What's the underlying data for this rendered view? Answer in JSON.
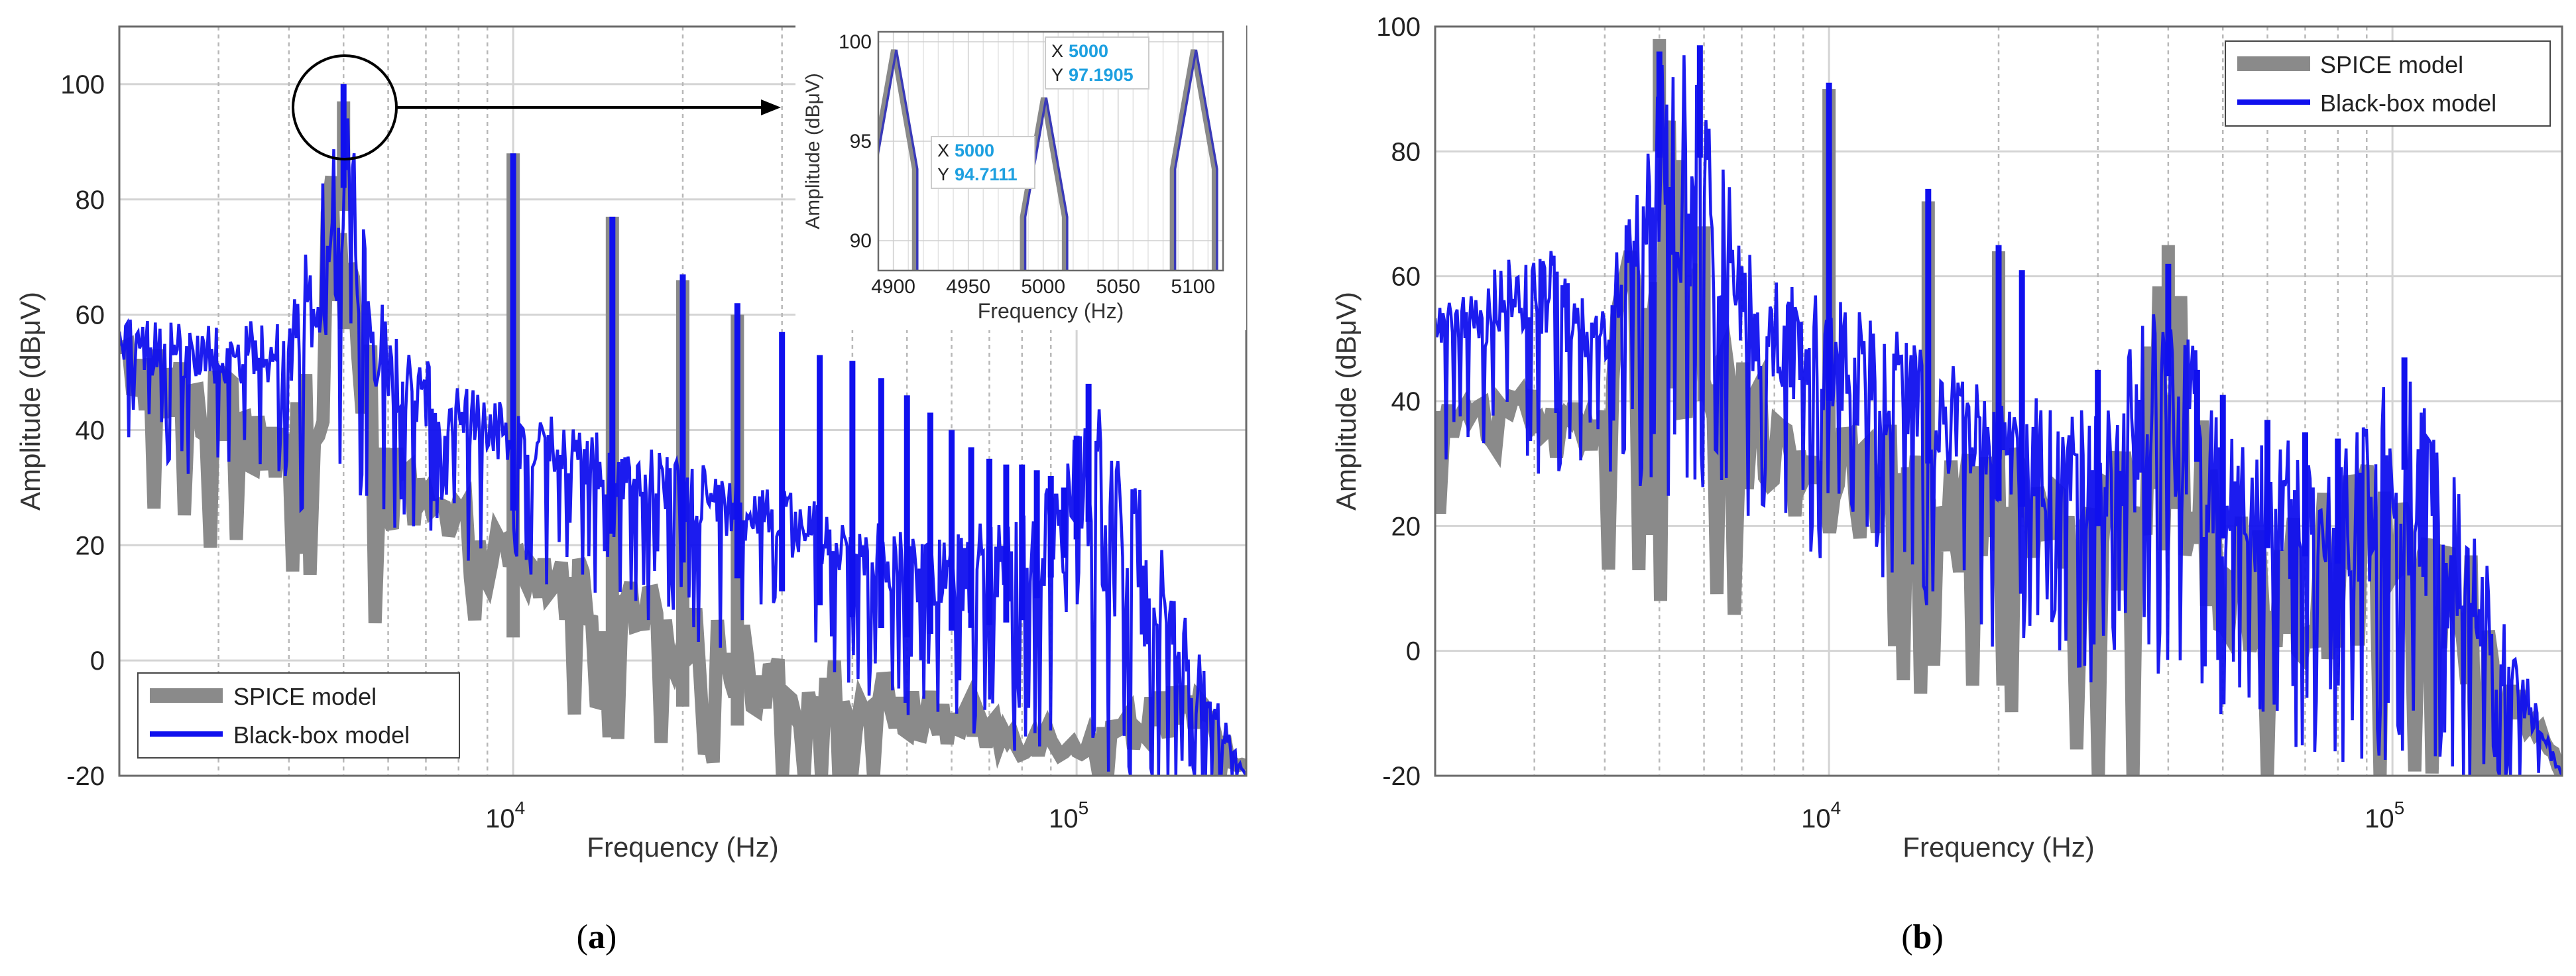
{
  "colors": {
    "spice": "#8a8a8a",
    "blackbox": "#1010ee",
    "grid_major": "#d4d4d4",
    "grid_minor": "#b8b8b8",
    "datatip_text": "#1ea0e0"
  },
  "chart_data": [
    {
      "type": "line",
      "panel": "(a)",
      "panel_letter": "a",
      "xscale": "log",
      "xlim": [
        2000,
        200000
      ],
      "ylim": [
        -20,
        110
      ],
      "yticks": [
        -20,
        0,
        20,
        40,
        60,
        80,
        100
      ],
      "ytick_labels": [
        "-20",
        "0",
        "20",
        "40",
        "60",
        "80",
        "100"
      ],
      "xtick_labels": [
        {
          "base": "10",
          "exp": "4",
          "value": 10000
        },
        {
          "base": "10",
          "exp": "5",
          "value": 100000
        }
      ],
      "xlabel": "Frequency (Hz)",
      "ylabel": "Amplitude (dBμV)",
      "legend": {
        "location": "lower-left",
        "entries": [
          "SPICE model",
          "Black-box model"
        ]
      },
      "series": [
        {
          "name": "SPICE model",
          "style": "thick gray",
          "envelope_points": [
            [
              2000,
              58
            ],
            [
              3000,
              50
            ],
            [
              4000,
              44
            ],
            [
              5000,
              96
            ],
            [
              6000,
              38
            ],
            [
              8000,
              28
            ],
            [
              10000,
              22
            ],
            [
              15000,
              16
            ],
            [
              20000,
              10
            ],
            [
              30000,
              4
            ],
            [
              50000,
              -4
            ],
            [
              80000,
              -10
            ],
            [
              110000,
              -12
            ],
            [
              150000,
              0
            ],
            [
              200000,
              -18
            ]
          ],
          "lower_points": [
            [
              2000,
              38
            ],
            [
              4000,
              22
            ],
            [
              6000,
              14
            ],
            [
              10000,
              4
            ],
            [
              20000,
              -10
            ],
            [
              30000,
              -20
            ],
            [
              200000,
              -20
            ]
          ],
          "harmonics": [
            {
              "f": 5000,
              "a": 97
            },
            {
              "f": 10000,
              "a": 88
            },
            {
              "f": 15000,
              "a": 77
            },
            {
              "f": 20000,
              "a": 66
            },
            {
              "f": 25000,
              "a": 60
            }
          ]
        },
        {
          "name": "Black-box model",
          "style": "blue",
          "envelope_points": [
            [
              2000,
              60
            ],
            [
              3000,
              58
            ],
            [
              4000,
              60
            ],
            [
              5000,
              100
            ],
            [
              6000,
              58
            ],
            [
              8000,
              48
            ],
            [
              10000,
              44
            ],
            [
              15000,
              40
            ],
            [
              20000,
              35
            ],
            [
              30000,
              30
            ],
            [
              50000,
              22
            ],
            [
              80000,
              25
            ],
            [
              110000,
              45
            ],
            [
              130000,
              30
            ],
            [
              200000,
              -20
            ]
          ],
          "lower_points": [
            [
              2000,
              44
            ],
            [
              4000,
              40
            ],
            [
              6000,
              34
            ],
            [
              10000,
              28
            ],
            [
              20000,
              18
            ],
            [
              40000,
              8
            ],
            [
              70000,
              -2
            ],
            [
              100000,
              -8
            ],
            [
              200000,
              -20
            ]
          ],
          "harmonics": [
            {
              "f": 5000,
              "a": 100
            },
            {
              "f": 10000,
              "a": 88
            },
            {
              "f": 15000,
              "a": 77
            },
            {
              "f": 20000,
              "a": 67
            },
            {
              "f": 25000,
              "a": 62
            },
            {
              "f": 30000,
              "a": 57
            },
            {
              "f": 35000,
              "a": 53
            },
            {
              "f": 40000,
              "a": 52
            },
            {
              "f": 45000,
              "a": 49
            },
            {
              "f": 50000,
              "a": 46
            },
            {
              "f": 55000,
              "a": 43
            },
            {
              "f": 60000,
              "a": 40
            },
            {
              "f": 65000,
              "a": 37
            },
            {
              "f": 70000,
              "a": 35
            },
            {
              "f": 75000,
              "a": 34
            },
            {
              "f": 80000,
              "a": 34
            },
            {
              "f": 85000,
              "a": 33
            },
            {
              "f": 90000,
              "a": 32
            },
            {
              "f": 95000,
              "a": 30
            },
            {
              "f": 100000,
              "a": 39
            },
            {
              "f": 105000,
              "a": 48
            }
          ]
        }
      ],
      "inset": {
        "xlim": [
          4890,
          5120
        ],
        "ylim": [
          88.5,
          100.5
        ],
        "xticks": [
          4900,
          4950,
          5000,
          5050,
          5100
        ],
        "xtick_labels": [
          "4900",
          "4950",
          "5000",
          "5050",
          "5100"
        ],
        "yticks": [
          90,
          95,
          100
        ],
        "ytick_labels": [
          "90",
          "95",
          "100"
        ],
        "xlabel": "Frequency (Hz)",
        "ylabel": "Amplitude (dBμV)",
        "peaks": [
          {
            "f": 4900,
            "a": 99.6
          },
          {
            "f": 5000,
            "a": 97.19
          },
          {
            "f": 5100,
            "a": 99.6
          }
        ],
        "datatips": [
          {
            "x_key": "X",
            "x_val": "5000",
            "y_key": "Y",
            "y_val": "97.1905"
          },
          {
            "x_key": "X",
            "x_val": "5000",
            "y_key": "Y",
            "y_val": "94.7111"
          }
        ]
      }
    },
    {
      "type": "line",
      "panel": "(b)",
      "panel_letter": "b",
      "xscale": "log",
      "xlim": [
        2000,
        200000
      ],
      "ylim": [
        -20,
        100
      ],
      "yticks": [
        -20,
        0,
        20,
        40,
        60,
        80,
        100
      ],
      "ytick_labels": [
        "-20",
        "0",
        "20",
        "40",
        "60",
        "80",
        "100"
      ],
      "xtick_labels": [
        {
          "base": "10",
          "exp": "4",
          "value": 10000
        },
        {
          "base": "10",
          "exp": "5",
          "value": 100000
        }
      ],
      "xlabel": "Frequency (Hz)",
      "ylabel": "Amplitude (dBμV)",
      "legend": {
        "location": "top-right",
        "entries": [
          "SPICE model",
          "Black-box model"
        ]
      },
      "series": [
        {
          "name": "SPICE model",
          "style": "thick gray",
          "envelope_points": [
            [
              2000,
              40
            ],
            [
              3000,
              42
            ],
            [
              4000,
              44
            ],
            [
              5000,
              98
            ],
            [
              6000,
              58
            ],
            [
              8000,
              42
            ],
            [
              10000,
              38
            ],
            [
              20000,
              34
            ],
            [
              30000,
              30
            ],
            [
              40000,
              65
            ],
            [
              50000,
              30
            ],
            [
              80000,
              26
            ],
            [
              110000,
              45
            ],
            [
              150000,
              5
            ],
            [
              200000,
              -18
            ]
          ],
          "lower_points": [
            [
              2000,
              30
            ],
            [
              3000,
              26
            ],
            [
              5000,
              18
            ],
            [
              10000,
              8
            ],
            [
              20000,
              -5
            ],
            [
              30000,
              -15
            ],
            [
              200000,
              -20
            ]
          ],
          "harmonics": [
            {
              "f": 5000,
              "a": 98
            },
            {
              "f": 6000,
              "a": 68
            },
            {
              "f": 10000,
              "a": 90
            },
            {
              "f": 15000,
              "a": 72
            },
            {
              "f": 20000,
              "a": 64
            },
            {
              "f": 40000,
              "a": 65
            }
          ]
        },
        {
          "name": "Black-box model",
          "style": "blue",
          "envelope_points": [
            [
              2000,
              55
            ],
            [
              2500,
              60
            ],
            [
              3000,
              70
            ],
            [
              3500,
              58
            ],
            [
              4000,
              55
            ],
            [
              5000,
              97
            ],
            [
              6000,
              97
            ],
            [
              7000,
              65
            ],
            [
              10000,
              58
            ],
            [
              15000,
              48
            ],
            [
              20000,
              42
            ],
            [
              30000,
              38
            ],
            [
              40000,
              62
            ],
            [
              50000,
              36
            ],
            [
              80000,
              32
            ],
            [
              105000,
              47
            ],
            [
              130000,
              28
            ],
            [
              200000,
              -20
            ]
          ],
          "lower_points": [
            [
              2000,
              44
            ],
            [
              4000,
              40
            ],
            [
              6000,
              36
            ],
            [
              10000,
              26
            ],
            [
              20000,
              14
            ],
            [
              40000,
              4
            ],
            [
              80000,
              -4
            ],
            [
              200000,
              -20
            ]
          ],
          "harmonics": [
            {
              "f": 5000,
              "a": 96
            },
            {
              "f": 5900,
              "a": 97
            },
            {
              "f": 10000,
              "a": 91
            },
            {
              "f": 15000,
              "a": 74
            },
            {
              "f": 20000,
              "a": 65
            },
            {
              "f": 22000,
              "a": 61
            },
            {
              "f": 30000,
              "a": 45
            },
            {
              "f": 40000,
              "a": 62
            },
            {
              "f": 45000,
              "a": 45
            },
            {
              "f": 50000,
              "a": 41
            },
            {
              "f": 60000,
              "a": 37
            },
            {
              "f": 70000,
              "a": 35
            },
            {
              "f": 80000,
              "a": 34
            },
            {
              "f": 105000,
              "a": 47
            }
          ]
        }
      ]
    }
  ]
}
